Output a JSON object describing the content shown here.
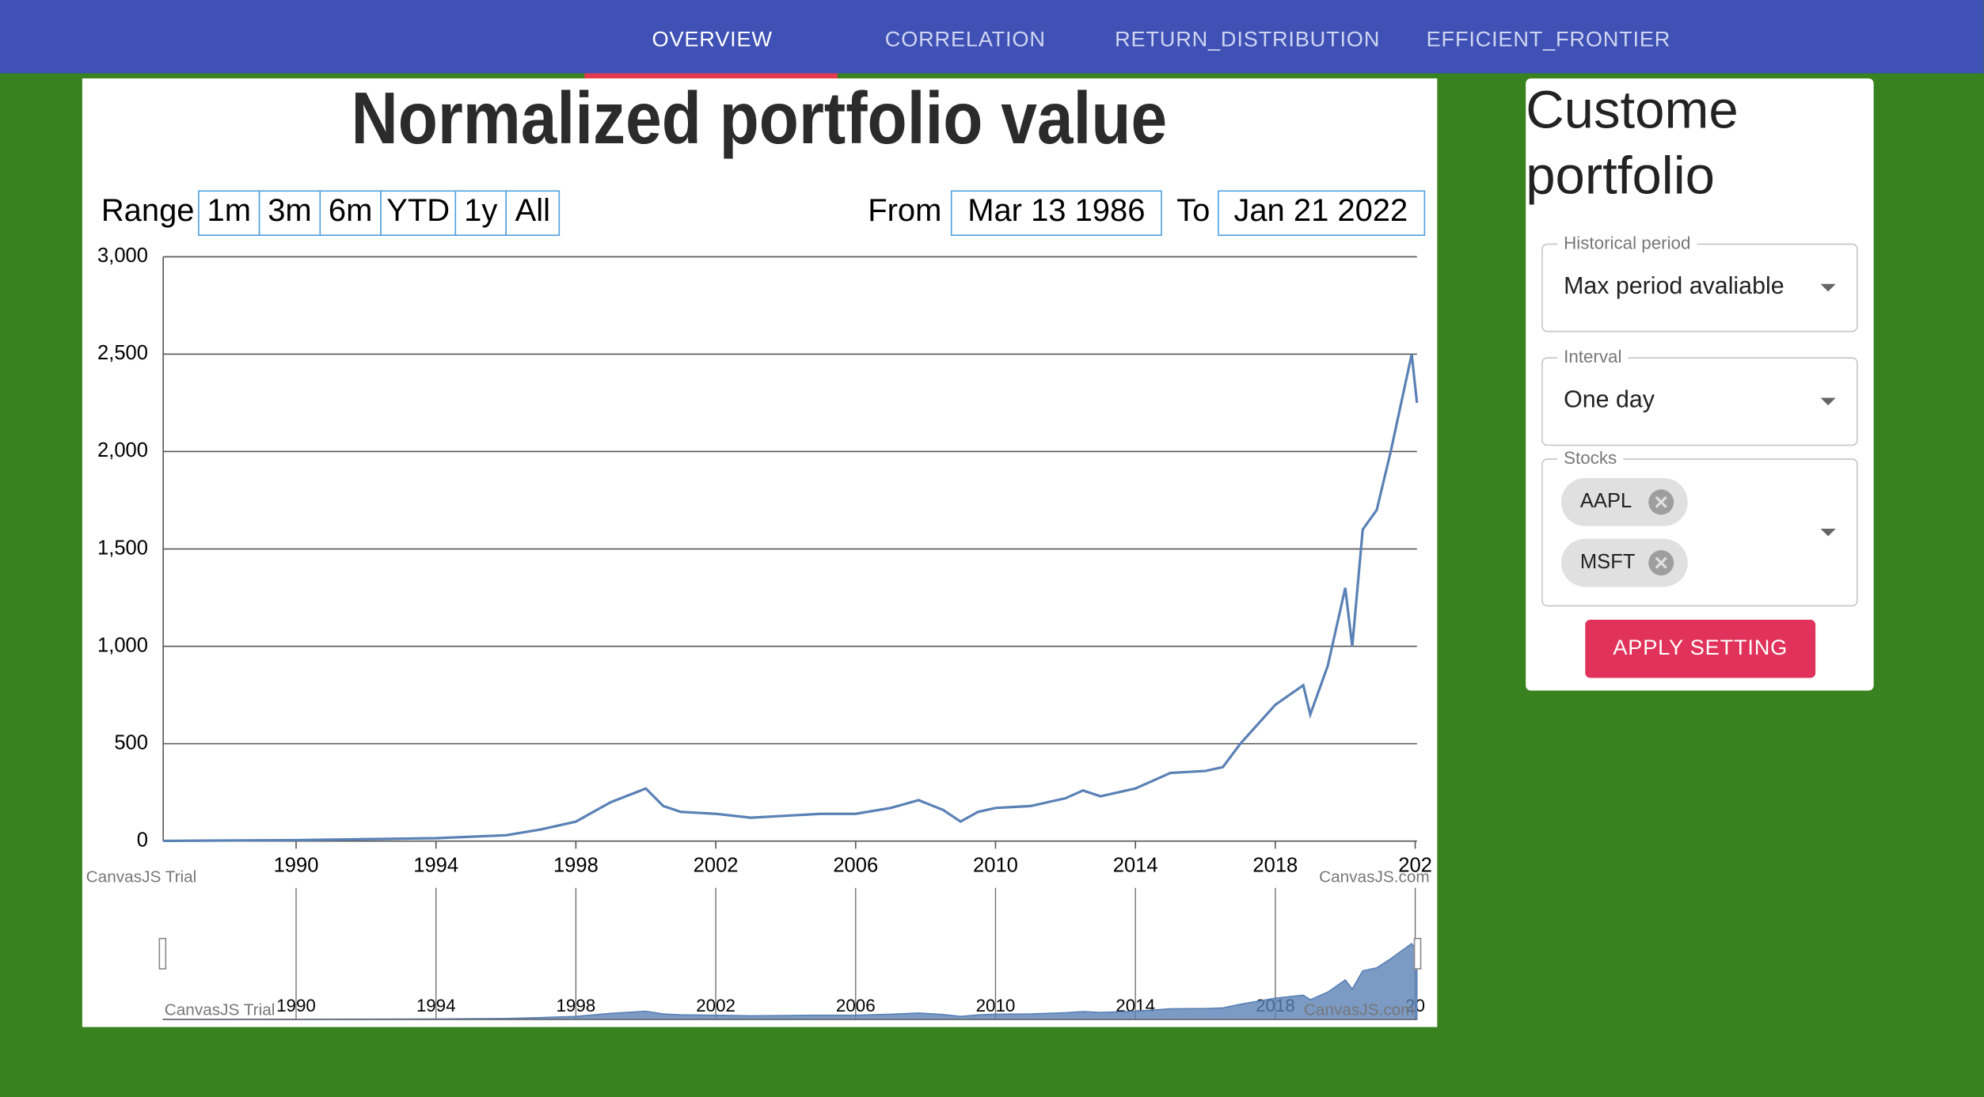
{
  "nav": {
    "tabs": [
      "OVERVIEW",
      "CORRELATION",
      "RETURN_DISTRIBUTION",
      "EFFICIENT_FRONTIER"
    ]
  },
  "chart_data": {
    "type": "line",
    "title": "Normalized portfolio value",
    "range_label": "Range",
    "range_buttons": [
      "1m",
      "3m",
      "6m",
      "YTD",
      "1y",
      "All"
    ],
    "from_label": "From",
    "from": "Mar 13 1986",
    "to_label": "To",
    "to": "Jan 21 2022",
    "x": [
      1986.2,
      1990,
      1994,
      1996,
      1997,
      1998,
      1999,
      2000,
      2000.5,
      2001,
      2002,
      2003,
      2004,
      2005,
      2006,
      2007,
      2007.8,
      2008.5,
      2009,
      2009.5,
      2010,
      2011,
      2012,
      2012.5,
      2013,
      2014,
      2015,
      2016,
      2016.5,
      2017,
      2018,
      2018.8,
      2019,
      2019.5,
      2020,
      2020.2,
      2020.5,
      2020.9,
      2021.3,
      2021.9,
      2022.05
    ],
    "values": [
      1,
      5,
      15,
      30,
      60,
      100,
      200,
      270,
      180,
      150,
      140,
      120,
      130,
      140,
      140,
      170,
      210,
      160,
      100,
      150,
      170,
      180,
      220,
      260,
      230,
      270,
      350,
      360,
      380,
      500,
      700,
      800,
      650,
      900,
      1300,
      1000,
      1600,
      1700,
      2000,
      2500,
      2250
    ],
    "color": "#5a81b5",
    "xlim": [
      1986.2,
      2022.05
    ],
    "xticks": [
      1990,
      1994,
      1998,
      2002,
      2006,
      2010,
      2014,
      2018,
      {
        "value": 2022,
        "label": "202"
      }
    ],
    "ylim": [
      0,
      3000
    ],
    "yticks": [
      0,
      500,
      {
        "value": 1000,
        "label": "1,000"
      },
      {
        "value": 1500,
        "label": "1,500"
      },
      {
        "value": 2000,
        "label": "2,000"
      },
      {
        "value": 2500,
        "label": "2,500"
      },
      {
        "value": 3000,
        "label": "3,000"
      }
    ],
    "grid": true,
    "watermarks": [
      "CanvasJS Trial",
      "CanvasJS.com"
    ],
    "navigator": {
      "xticks": [
        1990,
        1994,
        1998,
        2002,
        2006,
        2010,
        2014,
        2018,
        {
          "value": 2022,
          "label": "20"
        }
      ],
      "watermarks": [
        "CanvasJS Trial",
        "CanvasJS.com"
      ]
    }
  },
  "sidebar": {
    "title_lines": [
      "Custome",
      "portfolio"
    ],
    "fields": [
      {
        "label": "Historical period",
        "value": "Max period avaliable"
      },
      {
        "label": "Interval",
        "value": "One day"
      },
      {
        "label": "Stocks"
      }
    ],
    "stocks": [
      "AAPL",
      "MSFT"
    ],
    "button": "APPLY SETTING"
  }
}
